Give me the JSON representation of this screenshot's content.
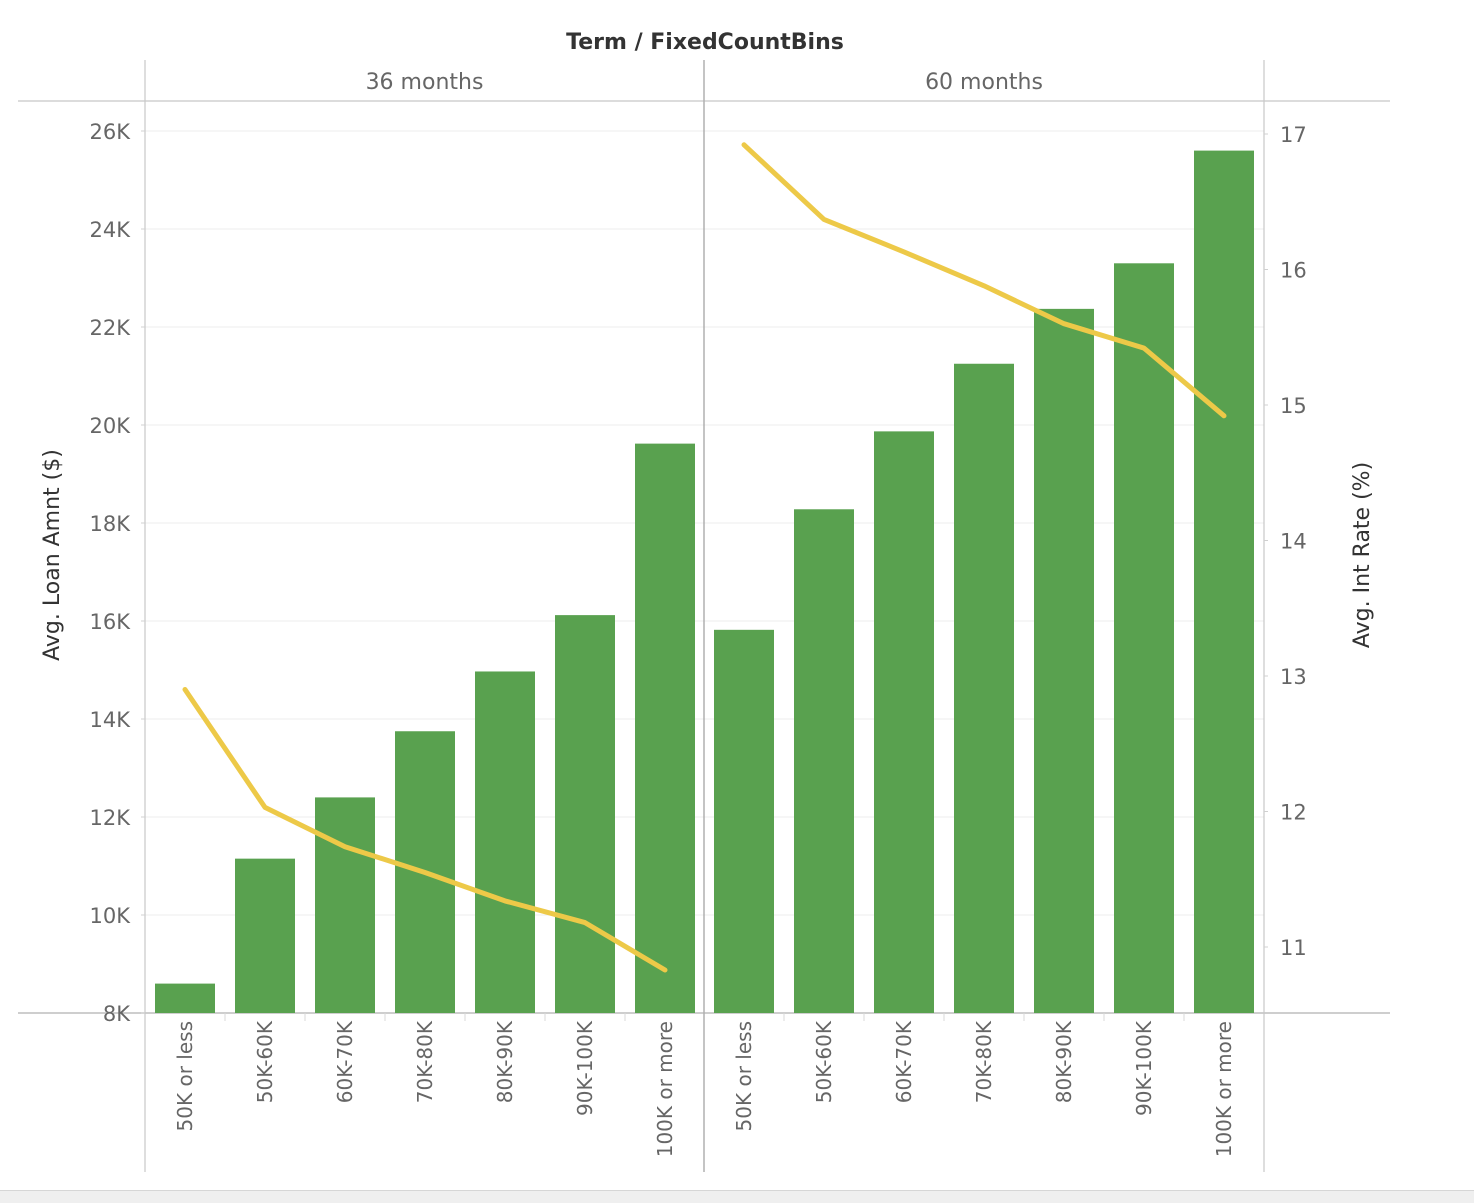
{
  "chart_data": {
    "type": "bar",
    "title": "Term / FixedCountBins",
    "panels": [
      "36 months",
      "60 months"
    ],
    "categories": [
      "50K or less",
      "50K-60K",
      "60K-70K",
      "70K-80K",
      "80K-90K",
      "90K-100K",
      "100K or more"
    ],
    "ylabel": "Avg. Loan Amnt ($)",
    "y2label": "Avg. Int Rate (%)",
    "ylim": [
      7800,
      26500
    ],
    "y2lim": [
      10.5,
      17.2
    ],
    "yticks": [
      "8K",
      "10K",
      "12K",
      "14K",
      "16K",
      "18K",
      "20K",
      "22K",
      "24K",
      "26K"
    ],
    "y2ticks": [
      "11",
      "12",
      "13",
      "14",
      "15",
      "16",
      "17"
    ],
    "grid": true,
    "series": [
      {
        "name": "Avg. Loan Amnt ($)",
        "type": "bar",
        "color": "#59a14f",
        "values": {
          "36 months": [
            8600,
            11150,
            12400,
            13750,
            14970,
            16120,
            19620
          ],
          "60 months": [
            15820,
            18280,
            19870,
            21250,
            22370,
            23300,
            25600
          ]
        }
      },
      {
        "name": "Avg. Int Rate (%)",
        "type": "line",
        "axis": "right",
        "color": "#edc948",
        "values": {
          "36 months": [
            12.9,
            12.03,
            11.74,
            11.55,
            11.34,
            11.18,
            10.83
          ],
          "60 months": [
            16.92,
            16.37,
            16.13,
            15.88,
            15.6,
            15.42,
            14.92
          ]
        }
      }
    ]
  }
}
